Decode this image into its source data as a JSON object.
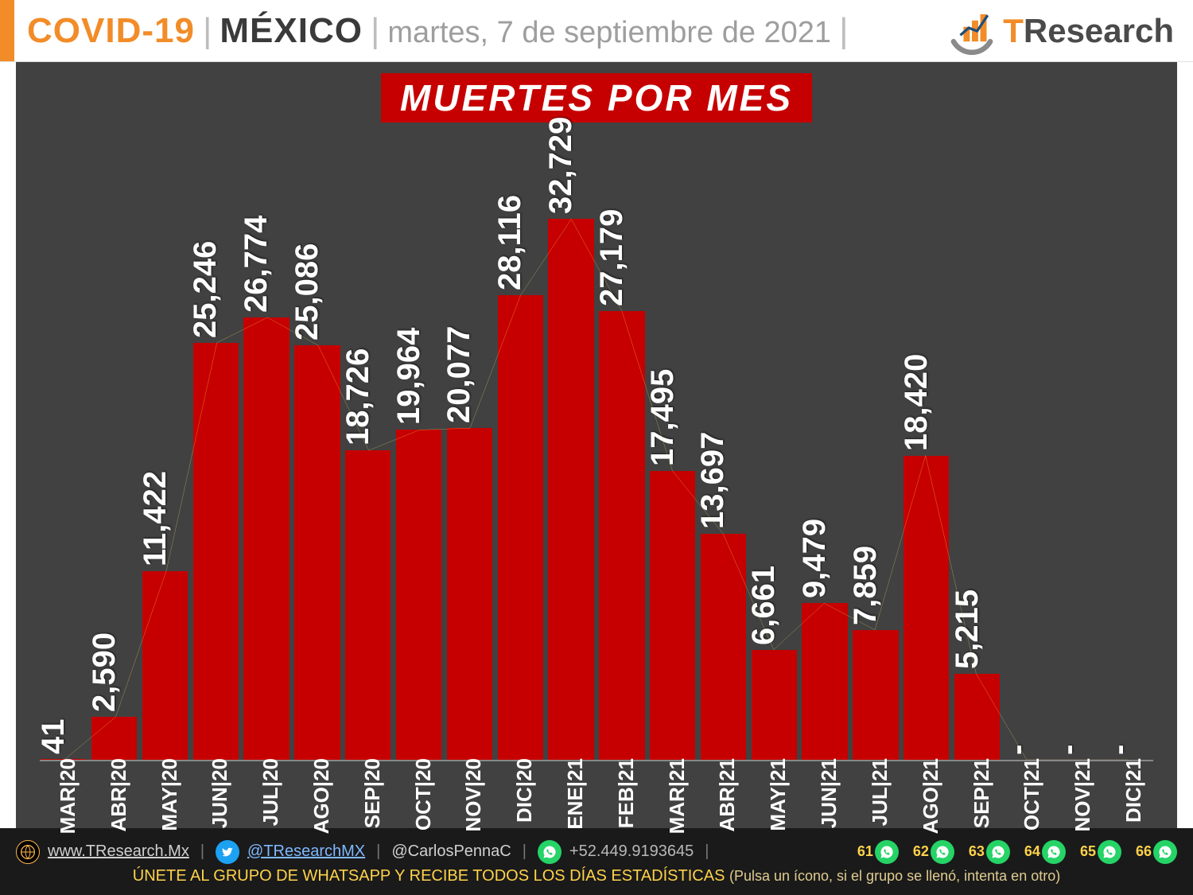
{
  "header": {
    "covid": "COVID-19",
    "mexico": "MÉXICO",
    "date": "martes, 7 de septiembre de 2021",
    "separator": "|",
    "logo_text_t": "T",
    "logo_text_rest": "Research"
  },
  "chart": {
    "type": "bar",
    "title": "MUERTES POR MES",
    "background_color": "#414141",
    "bar_color": "#c60000",
    "title_bg": "#c60000",
    "title_color": "#ffffff",
    "value_label_color": "#ffffff",
    "tick_label_color": "#ffffff",
    "trend_line_color": "#ffe066",
    "trend_line_width": 2,
    "title_fontsize": 46,
    "value_fontsize": 40,
    "tick_fontsize": 26,
    "bar_width": 0.96,
    "y_max": 38000,
    "categories": [
      "MAR|20",
      "ABR|20",
      "MAY|20",
      "JUN|20",
      "JUL|20",
      "AGO|20",
      "SEP|20",
      "OCT|20",
      "NOV|20",
      "DIC|20",
      "ENE|21",
      "FEB|21",
      "MAR|21",
      "ABR|21",
      "MAY|21",
      "JUN|21",
      "JUL|21",
      "AGO|21",
      "SEP|21",
      "OCT|21",
      "NOV|21",
      "DIC|21"
    ],
    "values": [
      41,
      2590,
      11422,
      25246,
      26774,
      25086,
      18726,
      19964,
      20077,
      28116,
      32729,
      27179,
      17495,
      13697,
      6661,
      9479,
      7859,
      18420,
      5215,
      0,
      0,
      0
    ],
    "value_labels": [
      "41",
      "2,590",
      "11,422",
      "25,246",
      "26,774",
      "25,086",
      "18,726",
      "19,964",
      "20,077",
      "28,116",
      "32,729",
      "27,179",
      "17,495",
      "13,697",
      "6,661",
      "9,479",
      "7,859",
      "18,420",
      "5,215",
      "-",
      "-",
      "-"
    ],
    "trend_values": [
      41,
      2590,
      11422,
      25246,
      26774,
      25086,
      18726,
      19964,
      20077,
      28116,
      32729,
      27179,
      17495,
      13697,
      6661,
      9479,
      7859,
      18420,
      5215,
      0,
      0,
      0
    ]
  },
  "footer": {
    "website": "www.TResearch.Mx",
    "twitter_main": "@TResearchMX",
    "twitter_alt": "@CarlosPennaC",
    "phone": "+52.449.9193645",
    "separator": "|",
    "wa_groups": [
      "61",
      "62",
      "63",
      "64",
      "65",
      "66"
    ],
    "cta": "ÚNETE AL GRUPO DE WHATSAPP Y RECIBE TODOS LOS DÍAS ESTADÍSTICAS",
    "cta_hint": "(Pulsa un ícono, si el grupo se llenó, intenta en otro)"
  }
}
